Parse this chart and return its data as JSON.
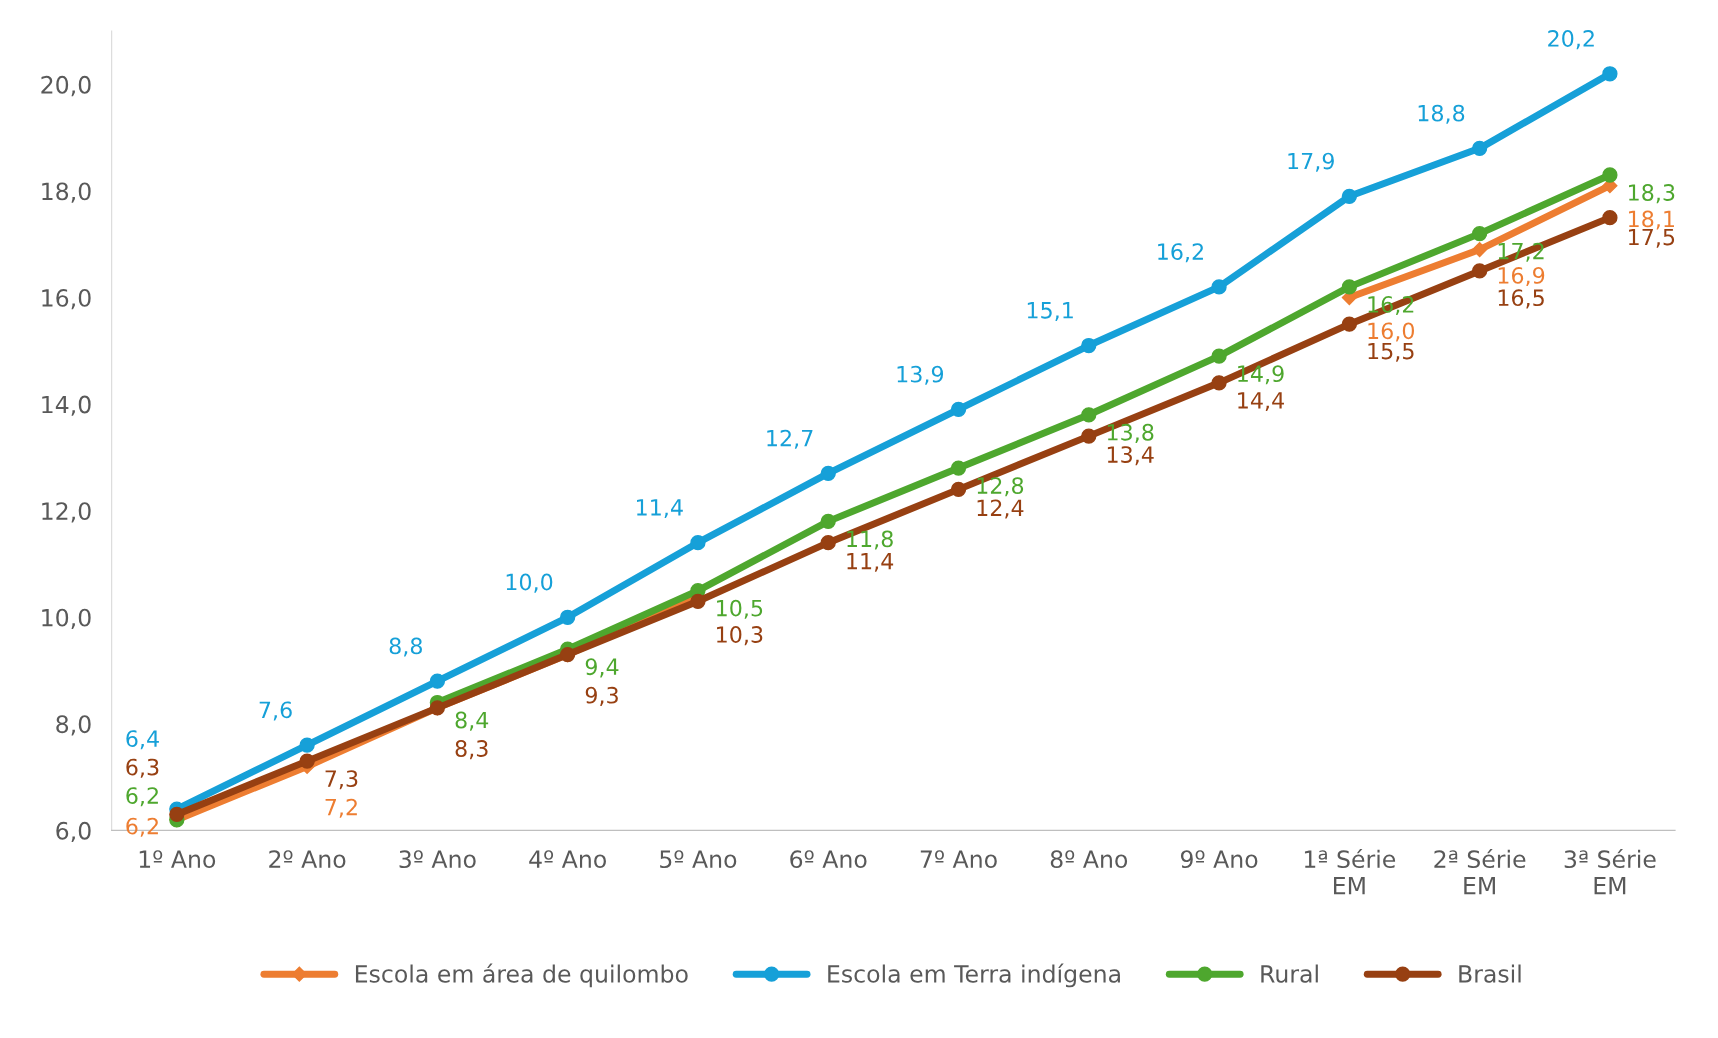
{
  "chart_data": {
    "type": "line",
    "categories": [
      "1º Ano",
      "2º Ano",
      "3º Ano",
      "4º Ano",
      "5º Ano",
      "6º Ano",
      "7º Ano",
      "8º Ano",
      "9º Ano",
      "1ª Série\nEM",
      "2ª Série\nEM",
      "3ª Série\nEM"
    ],
    "series": [
      {
        "name": "Escola em área de quilombo",
        "color": "#ed7d31",
        "marker": "diamond",
        "values": [
          6.2,
          7.2,
          8.3,
          9.3,
          10.4,
          null,
          null,
          null,
          null,
          16.0,
          16.9,
          18.1
        ],
        "value_labels": [
          "6,2",
          "7,2",
          null,
          null,
          null,
          null,
          null,
          null,
          null,
          "16,0",
          "16,9",
          "18,1"
        ]
      },
      {
        "name": "Escola em Terra indígena",
        "color": "#16a0d8",
        "marker": "circle",
        "values": [
          6.4,
          7.6,
          8.8,
          10.0,
          11.4,
          12.7,
          13.9,
          15.1,
          16.2,
          17.9,
          18.8,
          20.2
        ],
        "value_labels": [
          "6,4",
          "7,6",
          "8,8",
          "10,0",
          "11,4",
          "12,7",
          "13,9",
          "15,1",
          "16,2",
          "17,9",
          "18,8",
          "20,2"
        ]
      },
      {
        "name": "Rural",
        "color": "#4ea72e",
        "marker": "circle",
        "values": [
          6.2,
          null,
          8.4,
          9.4,
          10.5,
          11.8,
          12.8,
          13.8,
          14.9,
          16.2,
          17.2,
          18.3
        ],
        "value_labels": [
          "6,2",
          null,
          "8,4",
          "9,4",
          "10,5",
          "11,8",
          "12,8",
          "13,8",
          "14,9",
          "16,2",
          "17,2",
          "18,3"
        ]
      },
      {
        "name": "Brasil",
        "color": "#974012",
        "marker": "circle",
        "values": [
          6.3,
          7.3,
          8.3,
          9.3,
          10.3,
          11.4,
          12.4,
          13.4,
          14.4,
          15.5,
          16.5,
          17.5
        ],
        "value_labels": [
          "6,3",
          "7,3",
          "8,3",
          "9,3",
          "10,3",
          "11,4",
          "12,4",
          "13,4",
          "14,4",
          "15,5",
          "16,5",
          "17,5"
        ]
      }
    ],
    "ylim": [
      6,
      21
    ],
    "yticks": [
      {
        "value": 6,
        "label": "6,0"
      },
      {
        "value": 8,
        "label": "8,0"
      },
      {
        "value": 10,
        "label": "10,0"
      },
      {
        "value": 12,
        "label": "12,0"
      },
      {
        "value": 14,
        "label": "14,0"
      },
      {
        "value": 16,
        "label": "16,0"
      },
      {
        "value": 18,
        "label": "18,0"
      },
      {
        "value": 20,
        "label": "20,0"
      }
    ],
    "grid": false,
    "legend": "bottom",
    "line_style": "solid"
  }
}
